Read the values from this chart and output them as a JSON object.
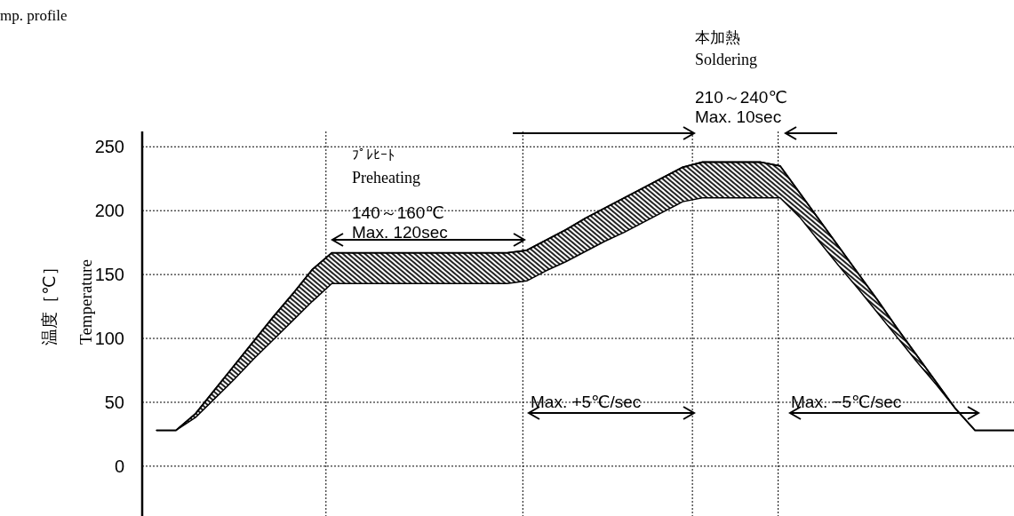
{
  "chart_data": {
    "type": "line",
    "subtitle": "mp. profile",
    "ylabel": "温度［℃］",
    "annotations": [
      "Temperature",
      "ﾌﾟﾚﾋｰﾄ",
      "Preheating",
      "140～160℃",
      "Max. 120sec",
      "本加熱",
      "Soldering",
      "210～240℃",
      "Max. 10sec",
      "Max. +5℃/sec",
      "Max. −5℃/sec"
    ],
    "categories": [
      null,
      null,
      null,
      null,
      null,
      null,
      null,
      null,
      null,
      null,
      null,
      null,
      null,
      null,
      null,
      null,
      null,
      null,
      null,
      null,
      null,
      null,
      null,
      null,
      null,
      null,
      null,
      null,
      null,
      null,
      null,
      null,
      null,
      null,
      null,
      null,
      null,
      null,
      null,
      null,
      null,
      null,
      null,
      null,
      null
    ],
    "series": [
      {
        "color": "#000000",
        "values": [
          28,
          28,
          41,
          60,
          79,
          98,
          117,
          135,
          154,
          167,
          167,
          167,
          167,
          167,
          167,
          167,
          167,
          167,
          167,
          169,
          177,
          185,
          194,
          202,
          210,
          218,
          226,
          234,
          238,
          238,
          238,
          238,
          235,
          214,
          193,
          172,
          151,
          130,
          108,
          87,
          66,
          45,
          28,
          28,
          28
        ],
        "lower": [
          28,
          28,
          38,
          53,
          68,
          84,
          99,
          114,
          129,
          143,
          143,
          143,
          143,
          143,
          143,
          143,
          143,
          143,
          143,
          145,
          153,
          160,
          168,
          176,
          183,
          191,
          199,
          207,
          210,
          210,
          210,
          210,
          210,
          195,
          176,
          157,
          139,
          120,
          101,
          82,
          64,
          45,
          28,
          28,
          28
        ],
        "upper": [
          28,
          28,
          41,
          60,
          79,
          98,
          117,
          135,
          154,
          167,
          167,
          167,
          167,
          167,
          167,
          167,
          167,
          167,
          167,
          169,
          177,
          185,
          194,
          202,
          210,
          218,
          226,
          234,
          238,
          238,
          238,
          238,
          235,
          214,
          193,
          172,
          151,
          130,
          108,
          87,
          66,
          45,
          28,
          28,
          28
        ]
      }
    ],
    "ylim": [
      -39,
      262
    ],
    "yticks": [
      0,
      50,
      100,
      150,
      200,
      250
    ],
    "grid": "y",
    "tick_labels": "y"
  }
}
